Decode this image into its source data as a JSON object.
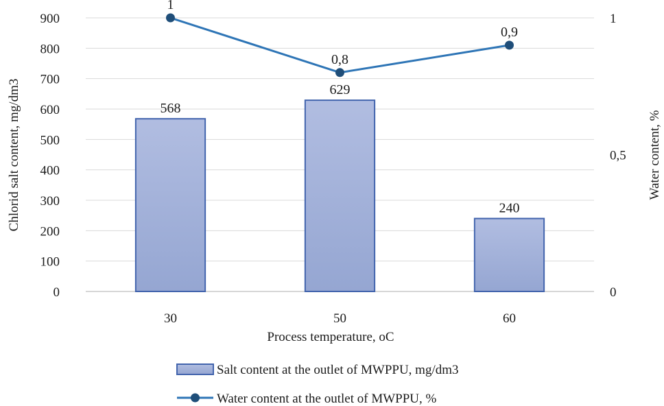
{
  "chart_data": {
    "type": "bar",
    "xlabel": "Process temperature, oC",
    "ylabel": "Chlorid salt content, mg/dm3",
    "y2label": "Water content, %",
    "categories": [
      "30",
      "50",
      "60"
    ],
    "ylim": [
      0,
      900
    ],
    "yticks": [
      "0",
      "100",
      "200",
      "300",
      "400",
      "500",
      "600",
      "700",
      "800",
      "900"
    ],
    "y2lim": [
      0,
      1
    ],
    "y2ticks": [
      "0",
      "0,5",
      "1"
    ],
    "grid": true,
    "legend_position": "bottom",
    "series": [
      {
        "name": "Salt content at the outlet of MWPPU, mg/dm3",
        "type": "bar",
        "axis": "left",
        "values": [
          568,
          629,
          240
        ],
        "labels": [
          "568",
          "629",
          "240"
        ],
        "color": "#a3b2d9",
        "border_color": "#4264ad"
      },
      {
        "name": "Water content at the outlet of MWPPU, %",
        "type": "line",
        "axis": "right",
        "values": [
          1,
          0.8,
          0.9
        ],
        "labels": [
          "1",
          "0,8",
          "0,9"
        ],
        "color": "#2e75b6",
        "marker_color": "#1f4e79"
      }
    ]
  }
}
